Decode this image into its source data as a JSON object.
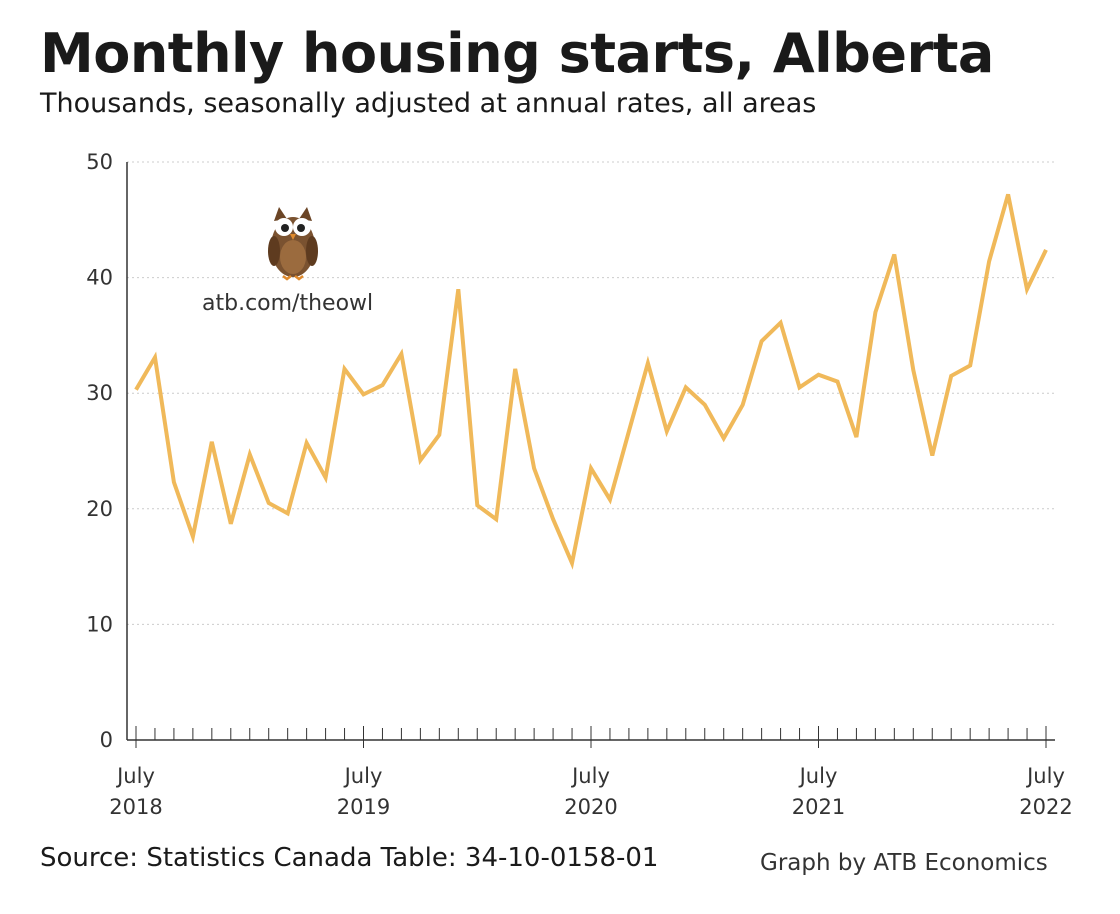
{
  "header": {
    "title": "Monthly housing starts, Alberta",
    "subtitle": "Thousands, seasonally adjusted at annual rates, all areas"
  },
  "watermark": {
    "text": "atb.com/theowl",
    "icon": "owl-icon"
  },
  "footer": {
    "source": "Source: Statistics Canada Table: 34-10-0158-01",
    "credit": "Graph by ATB Economics"
  },
  "colors": {
    "line": "#f0b95a",
    "grid": "#cccccc",
    "axis": "#333333",
    "owl_body": "#7a5230"
  },
  "chart_data": {
    "type": "line",
    "title": "Monthly housing starts, Alberta",
    "subtitle": "Thousands, seasonally adjusted at annual rates, all areas",
    "xlabel": "",
    "ylabel": "",
    "ylim": [
      0,
      50
    ],
    "yticks": [
      0,
      10,
      20,
      30,
      40,
      50
    ],
    "grid": true,
    "x_tick_labels": [
      {
        "month_index": 0,
        "line1": "July",
        "line2": "2018"
      },
      {
        "month_index": 12,
        "line1": "July",
        "line2": "2019"
      },
      {
        "month_index": 24,
        "line1": "July",
        "line2": "2020"
      },
      {
        "month_index": 36,
        "line1": "July",
        "line2": "2021"
      },
      {
        "month_index": 48,
        "line1": "July",
        "line2": "2022"
      }
    ],
    "x_start": "2018-07",
    "x_end": "2022-07",
    "series": [
      {
        "values": [
          30.3,
          33.1,
          22.3,
          17.6,
          25.8,
          18.7,
          24.7,
          20.5,
          19.6,
          25.7,
          22.7,
          32.1,
          29.9,
          30.7,
          33.4,
          24.2,
          26.4,
          39.0,
          20.3,
          19.1,
          32.1,
          23.5,
          19.1,
          15.3,
          23.5,
          20.8,
          26.7,
          32.6,
          26.7,
          30.5,
          29.0,
          26.1,
          29.0,
          34.5,
          36.1,
          30.5,
          31.6,
          31.0,
          26.2,
          37.0,
          42.0,
          32.0,
          24.6,
          31.5,
          32.4,
          41.4,
          47.2,
          39.0,
          42.4
        ]
      }
    ]
  }
}
